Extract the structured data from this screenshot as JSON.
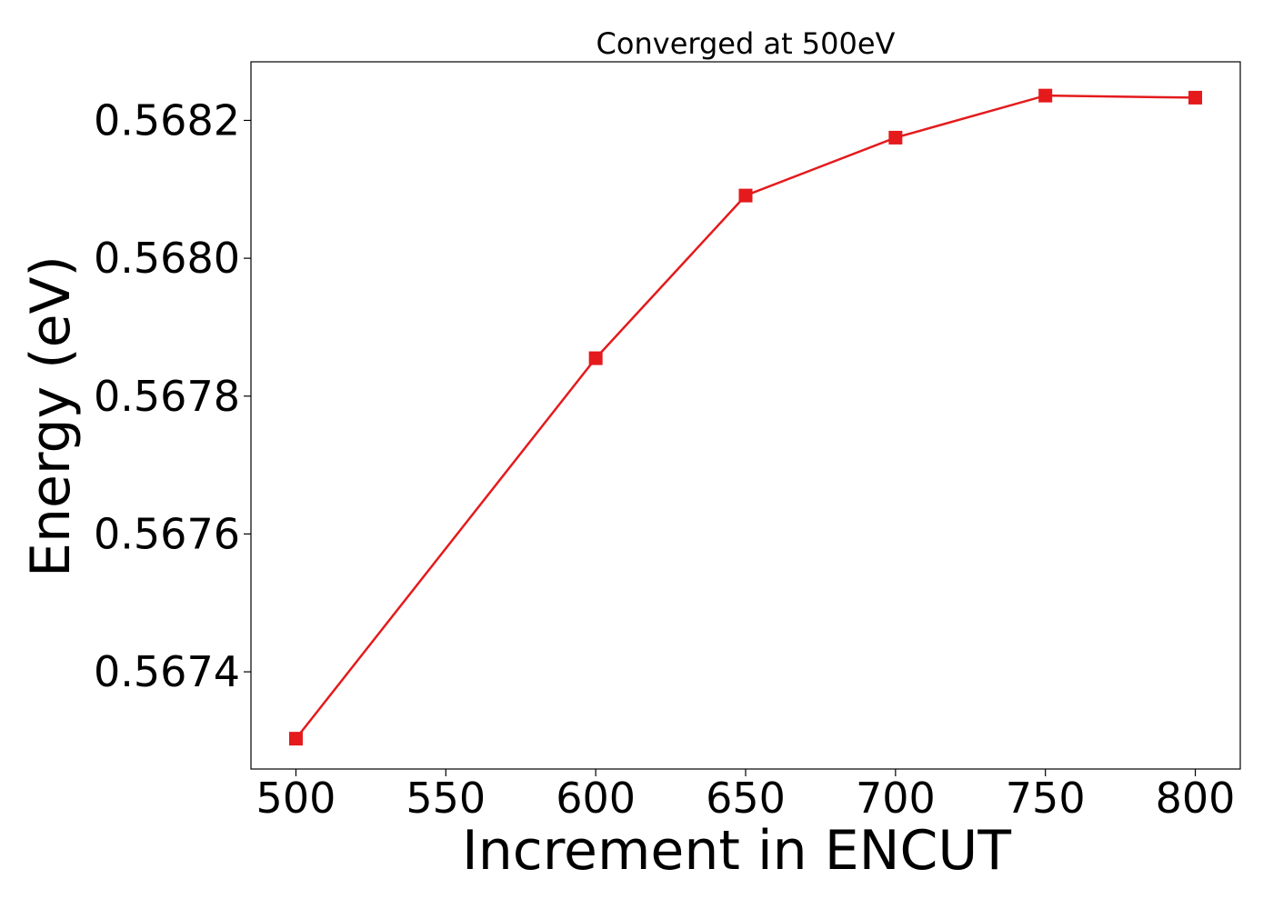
{
  "chart_data": {
    "type": "line",
    "title": "Converged at 500eV",
    "xlabel": "Increment in ENCUT",
    "ylabel": "Energy (eV)",
    "x": [
      500,
      600,
      650,
      700,
      750,
      800
    ],
    "series": [
      {
        "values": [
          0.567303,
          0.567855,
          0.568091,
          0.568175,
          0.568236,
          0.568233
        ],
        "color": "#e41a1c",
        "marker": "square"
      }
    ],
    "xlim": [
      485,
      815
    ],
    "ylim": [
      0.567259,
      0.568285
    ],
    "xticks": [
      500,
      550,
      600,
      650,
      700,
      750,
      800
    ],
    "xtick_labels": [
      "500",
      "550",
      "600",
      "650",
      "700",
      "750",
      "800"
    ],
    "yticks": [
      0.5674,
      0.5676,
      0.5678,
      0.568,
      0.5682
    ],
    "ytick_labels": [
      "0.5674",
      "0.5676",
      "0.5678",
      "0.5680",
      "0.5682"
    ],
    "grid": false,
    "legend": "none"
  }
}
